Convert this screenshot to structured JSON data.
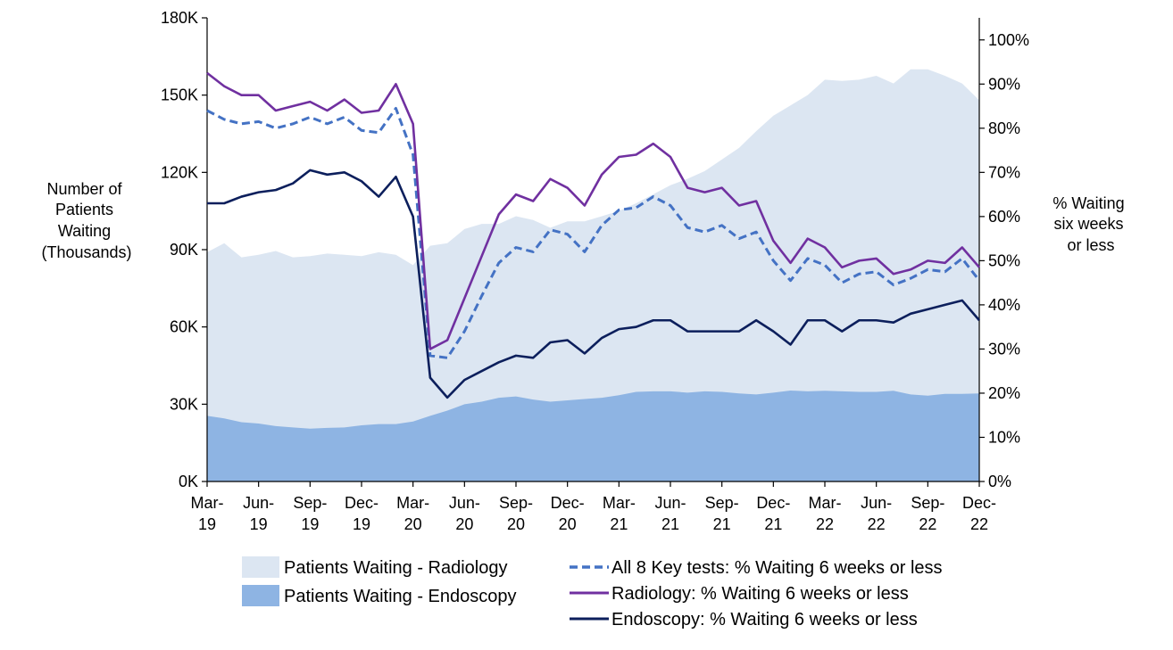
{
  "chart_data": {
    "type": "area",
    "y_left": {
      "label_lines": [
        "Number of",
        "Patients",
        "Waiting",
        "(Thousands)"
      ],
      "min": 0,
      "max": 180,
      "unit": "thousand patients",
      "ticks": [
        "0K",
        "30K",
        "60K",
        "90K",
        "120K",
        "150K",
        "180K"
      ]
    },
    "y_right": {
      "label_lines": [
        "% Waiting",
        "six weeks",
        "or less"
      ],
      "min": 0,
      "max": 105,
      "unit": "%",
      "ticks": [
        "0%",
        "10%",
        "20%",
        "30%",
        "40%",
        "50%",
        "60%",
        "70%",
        "80%",
        "90%",
        "100%"
      ]
    },
    "x_ticks": [
      {
        "index": 0,
        "line1": "Mar-",
        "line2": "19"
      },
      {
        "index": 3,
        "line1": "Jun-",
        "line2": "19"
      },
      {
        "index": 6,
        "line1": "Sep-",
        "line2": "19"
      },
      {
        "index": 9,
        "line1": "Dec-",
        "line2": "19"
      },
      {
        "index": 12,
        "line1": "Mar-",
        "line2": "20"
      },
      {
        "index": 15,
        "line1": "Jun-",
        "line2": "20"
      },
      {
        "index": 18,
        "line1": "Sep-",
        "line2": "20"
      },
      {
        "index": 21,
        "line1": "Dec-",
        "line2": "20"
      },
      {
        "index": 24,
        "line1": "Mar-",
        "line2": "21"
      },
      {
        "index": 27,
        "line1": "Jun-",
        "line2": "21"
      },
      {
        "index": 30,
        "line1": "Sep-",
        "line2": "21"
      },
      {
        "index": 33,
        "line1": "Dec-",
        "line2": "21"
      },
      {
        "index": 36,
        "line1": "Mar-",
        "line2": "22"
      },
      {
        "index": 39,
        "line1": "Jun-",
        "line2": "22"
      },
      {
        "index": 42,
        "line1": "Sep-",
        "line2": "22"
      },
      {
        "index": 45,
        "line1": "Dec-",
        "line2": "22"
      }
    ],
    "x": [
      "Mar-19",
      "Apr-19",
      "May-19",
      "Jun-19",
      "Jul-19",
      "Aug-19",
      "Sep-19",
      "Oct-19",
      "Nov-19",
      "Dec-19",
      "Jan-20",
      "Feb-20",
      "Mar-20",
      "Apr-20",
      "May-20",
      "Jun-20",
      "Jul-20",
      "Aug-20",
      "Sep-20",
      "Oct-20",
      "Nov-20",
      "Dec-20",
      "Jan-21",
      "Feb-21",
      "Mar-21",
      "Apr-21",
      "May-21",
      "Jun-21",
      "Jul-21",
      "Aug-21",
      "Sep-21",
      "Oct-21",
      "Nov-21",
      "Dec-21",
      "Jan-22",
      "Feb-22",
      "Mar-22",
      "Apr-22",
      "May-22",
      "Jun-22",
      "Jul-22",
      "Aug-22",
      "Sep-22",
      "Oct-22",
      "Nov-22",
      "Dec-22"
    ],
    "areas": [
      {
        "name": "Patients Waiting - Radiology",
        "axis": "left",
        "color": "#dce6f2",
        "values": [
          89,
          92.5,
          87,
          88,
          89.5,
          87,
          87.5,
          88.5,
          88,
          87.5,
          89,
          88,
          84,
          91.5,
          92.5,
          98,
          100,
          100,
          103,
          101.5,
          98.5,
          101,
          101,
          103,
          105,
          108,
          111.5,
          115,
          117.5,
          120.5,
          125,
          129.5,
          136,
          142,
          146,
          150,
          156,
          155.5,
          156,
          157.5,
          154.5,
          160,
          160,
          157.5,
          154.5,
          148
        ]
      },
      {
        "name": "Patients Waiting - Endoscopy",
        "axis": "left",
        "color": "#8eb4e3",
        "values": [
          25.5,
          24.5,
          23,
          22.5,
          21.5,
          21,
          20.5,
          20.8,
          21,
          21.8,
          22.3,
          22.3,
          23.3,
          25.5,
          27.5,
          30,
          31,
          32.5,
          33,
          31.8,
          31,
          31.5,
          32,
          32.5,
          33.5,
          34.8,
          35,
          35,
          34.5,
          35,
          34.8,
          34.2,
          33.8,
          34.5,
          35.3,
          35,
          35.2,
          35,
          34.8,
          34.8,
          35.2,
          33.8,
          33.3,
          34,
          34,
          34.2
        ]
      }
    ],
    "series": [
      {
        "name": "All 8 Key tests: % Waiting 6 weeks or less",
        "axis": "right",
        "color": "#4472c4",
        "dashed": true,
        "values": [
          84,
          82,
          81,
          81.5,
          80,
          81,
          82.5,
          81,
          82.5,
          79.5,
          79,
          84.5,
          74,
          28.5,
          28,
          34,
          42,
          49.5,
          53,
          52,
          57,
          56,
          52,
          58,
          61.5,
          62,
          64.5,
          62.5,
          57.5,
          56.5,
          58,
          55,
          56.5,
          50,
          45.5,
          50.5,
          49,
          45,
          47,
          47.5,
          44.5,
          46,
          48,
          47.5,
          50.5,
          45.5
        ]
      },
      {
        "name": "Radiology: % Waiting 6 weeks or less",
        "axis": "right",
        "color": "#7030a0",
        "dashed": false,
        "values": [
          92.5,
          89.5,
          87.5,
          87.5,
          84,
          85,
          86,
          84,
          86.5,
          83.5,
          84,
          90,
          81,
          30,
          32,
          41.5,
          51,
          60.5,
          65,
          63.5,
          68.5,
          66.5,
          62.5,
          69.5,
          73.5,
          74,
          76.5,
          73.5,
          66.5,
          65.5,
          66.5,
          62.5,
          63.5,
          54.5,
          49.5,
          55,
          53,
          48.5,
          50,
          50.5,
          47,
          48,
          50,
          49.5,
          53,
          48.5
        ]
      },
      {
        "name": "Endoscopy: % Waiting 6 weeks or less",
        "axis": "right",
        "color": "#0c1f5c",
        "dashed": false,
        "values": [
          63,
          63,
          64.5,
          65.5,
          66,
          67.5,
          70.5,
          69.5,
          70,
          68,
          64.5,
          69,
          60,
          23.5,
          19,
          23,
          25,
          27,
          28.5,
          28,
          31.5,
          32,
          29,
          32.5,
          34.5,
          35,
          36.5,
          36.5,
          34,
          34,
          34,
          34,
          36.5,
          34,
          31,
          36.5,
          36.5,
          34,
          36.5,
          36.5,
          36,
          38,
          39,
          40,
          41,
          36.5
        ]
      }
    ],
    "legend": [
      {
        "label": "Patients Waiting - Radiology",
        "kind": "area",
        "color": "#dce6f2"
      },
      {
        "label": "Patients Waiting - Endoscopy",
        "kind": "area",
        "color": "#8eb4e3"
      },
      {
        "label": "All 8 Key tests: % Waiting 6 weeks or less",
        "kind": "dashed-line",
        "color": "#4472c4"
      },
      {
        "label": "Radiology: % Waiting 6 weeks or less",
        "kind": "line",
        "color": "#7030a0"
      },
      {
        "label": "Endoscopy: % Waiting 6 weeks or less",
        "kind": "line",
        "color": "#0c1f5c"
      }
    ],
    "legend_position": "bottom",
    "grid": false
  }
}
